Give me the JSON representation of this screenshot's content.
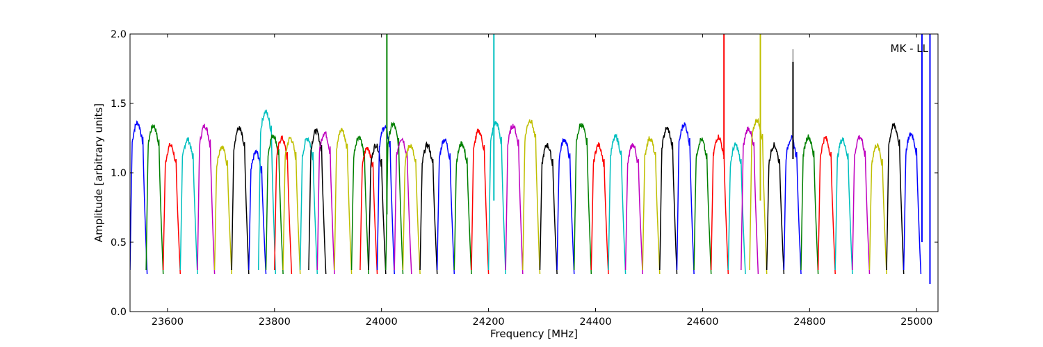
{
  "chart_data": {
    "type": "line",
    "title": "",
    "xlabel": "Frequency [MHz]",
    "ylabel": "Amplitude [arbitrary units]",
    "annotation": "MK - LL",
    "xlim": [
      23530,
      25040
    ],
    "ylim": [
      0.0,
      2.0
    ],
    "x_ticks": [
      23600,
      23800,
      24000,
      24200,
      24400,
      24600,
      24800,
      25000
    ],
    "x_tick_labels": [
      "23600",
      "23800",
      "24000",
      "24200",
      "24400",
      "24600",
      "24800",
      "25000"
    ],
    "y_ticks": [
      0.0,
      0.5,
      1.0,
      1.5,
      2.0
    ],
    "y_tick_labels": [
      "0.0",
      "0.5",
      "1.0",
      "1.5",
      "2.0"
    ],
    "grid": false,
    "legend": "none",
    "band_width_mhz": 32,
    "color_cycle": [
      "#0000ff",
      "#008000",
      "#ff0000",
      "#00bfbf",
      "#bf00bf",
      "#bfbf00",
      "#000000"
    ],
    "bands": [
      {
        "start": 23530,
        "peak": 1.36,
        "color": "#0000ff"
      },
      {
        "start": 23560,
        "peak": 1.34,
        "color": "#008000"
      },
      {
        "start": 23592,
        "peak": 1.2,
        "color": "#ff0000"
      },
      {
        "start": 23624,
        "peak": 1.24,
        "color": "#00bfbf"
      },
      {
        "start": 23656,
        "peak": 1.34,
        "color": "#bf00bf"
      },
      {
        "start": 23688,
        "peak": 1.19,
        "color": "#bfbf00"
      },
      {
        "start": 23720,
        "peak": 1.32,
        "color": "#000000"
      },
      {
        "start": 23752,
        "peak": 1.15,
        "color": "#0000ff"
      },
      {
        "start": 23770,
        "peak": 1.44,
        "color": "#00bfbf"
      },
      {
        "start": 23784,
        "peak": 1.27,
        "color": "#008000"
      },
      {
        "start": 23800,
        "peak": 1.25,
        "color": "#ff0000"
      },
      {
        "start": 23816,
        "peak": 1.25,
        "color": "#bfbf00"
      },
      {
        "start": 23848,
        "peak": 1.25,
        "color": "#00bfbf"
      },
      {
        "start": 23864,
        "peak": 1.3,
        "color": "#000000"
      },
      {
        "start": 23880,
        "peak": 1.29,
        "color": "#bf00bf"
      },
      {
        "start": 23912,
        "peak": 1.31,
        "color": "#bfbf00"
      },
      {
        "start": 23944,
        "peak": 1.26,
        "color": "#008000"
      },
      {
        "start": 23960,
        "peak": 1.18,
        "color": "#ff0000"
      },
      {
        "start": 23976,
        "peak": 1.2,
        "color": "#000000"
      },
      {
        "start": 23992,
        "peak": 1.33,
        "color": "#0000ff"
      },
      {
        "start": 24008,
        "peak": 1.35,
        "color": "#008000"
      },
      {
        "start": 24024,
        "peak": 1.25,
        "color": "#bf00bf"
      },
      {
        "start": 24040,
        "peak": 1.2,
        "color": "#bfbf00"
      },
      {
        "start": 24072,
        "peak": 1.2,
        "color": "#000000"
      },
      {
        "start": 24104,
        "peak": 1.24,
        "color": "#0000ff"
      },
      {
        "start": 24136,
        "peak": 1.21,
        "color": "#008000"
      },
      {
        "start": 24168,
        "peak": 1.3,
        "color": "#ff0000"
      },
      {
        "start": 24200,
        "peak": 1.36,
        "color": "#00bfbf"
      },
      {
        "start": 24232,
        "peak": 1.34,
        "color": "#bf00bf"
      },
      {
        "start": 24264,
        "peak": 1.38,
        "color": "#bfbf00"
      },
      {
        "start": 24296,
        "peak": 1.2,
        "color": "#000000"
      },
      {
        "start": 24328,
        "peak": 1.24,
        "color": "#0000ff"
      },
      {
        "start": 24360,
        "peak": 1.35,
        "color": "#008000"
      },
      {
        "start": 24392,
        "peak": 1.2,
        "color": "#ff0000"
      },
      {
        "start": 24424,
        "peak": 1.26,
        "color": "#00bfbf"
      },
      {
        "start": 24456,
        "peak": 1.2,
        "color": "#bf00bf"
      },
      {
        "start": 24488,
        "peak": 1.25,
        "color": "#bfbf00"
      },
      {
        "start": 24520,
        "peak": 1.32,
        "color": "#000000"
      },
      {
        "start": 24552,
        "peak": 1.35,
        "color": "#0000ff"
      },
      {
        "start": 24584,
        "peak": 1.24,
        "color": "#008000"
      },
      {
        "start": 24616,
        "peak": 1.26,
        "color": "#ff0000"
      },
      {
        "start": 24648,
        "peak": 1.2,
        "color": "#00bfbf"
      },
      {
        "start": 24672,
        "peak": 1.32,
        "color": "#bf00bf"
      },
      {
        "start": 24688,
        "peak": 1.38,
        "color": "#bfbf00"
      },
      {
        "start": 24720,
        "peak": 1.2,
        "color": "#000000"
      },
      {
        "start": 24752,
        "peak": 1.25,
        "color": "#0000ff"
      },
      {
        "start": 24784,
        "peak": 1.26,
        "color": "#008000"
      },
      {
        "start": 24816,
        "peak": 1.25,
        "color": "#ff0000"
      },
      {
        "start": 24848,
        "peak": 1.24,
        "color": "#00bfbf"
      },
      {
        "start": 24880,
        "peak": 1.26,
        "color": "#bf00bf"
      },
      {
        "start": 24912,
        "peak": 1.2,
        "color": "#bfbf00"
      },
      {
        "start": 24944,
        "peak": 1.34,
        "color": "#000000"
      },
      {
        "start": 24976,
        "peak": 1.28,
        "color": "#0000ff"
      }
    ],
    "spikes": [
      {
        "x": 24010,
        "y_from": 0.7,
        "y_to": 2.0,
        "color": "#008000"
      },
      {
        "x": 24210,
        "y_from": 0.8,
        "y_to": 2.0,
        "color": "#00bfbf"
      },
      {
        "x": 24640,
        "y_from": 1.1,
        "y_to": 2.0,
        "color": "#ff0000"
      },
      {
        "x": 24708,
        "y_from": 0.8,
        "y_to": 2.0,
        "color": "#bfbf00"
      },
      {
        "x": 24769,
        "y_from": 1.1,
        "y_to": 1.89,
        "color": "#aaaaaa"
      },
      {
        "x": 24769,
        "y_from": 1.1,
        "y_to": 1.8,
        "color": "#000000"
      },
      {
        "x": 25010,
        "y_from": 0.5,
        "y_to": 2.0,
        "color": "#0000ff"
      },
      {
        "x": 25025,
        "y_from": 0.2,
        "y_to": 2.0,
        "color": "#0000ff"
      }
    ]
  }
}
